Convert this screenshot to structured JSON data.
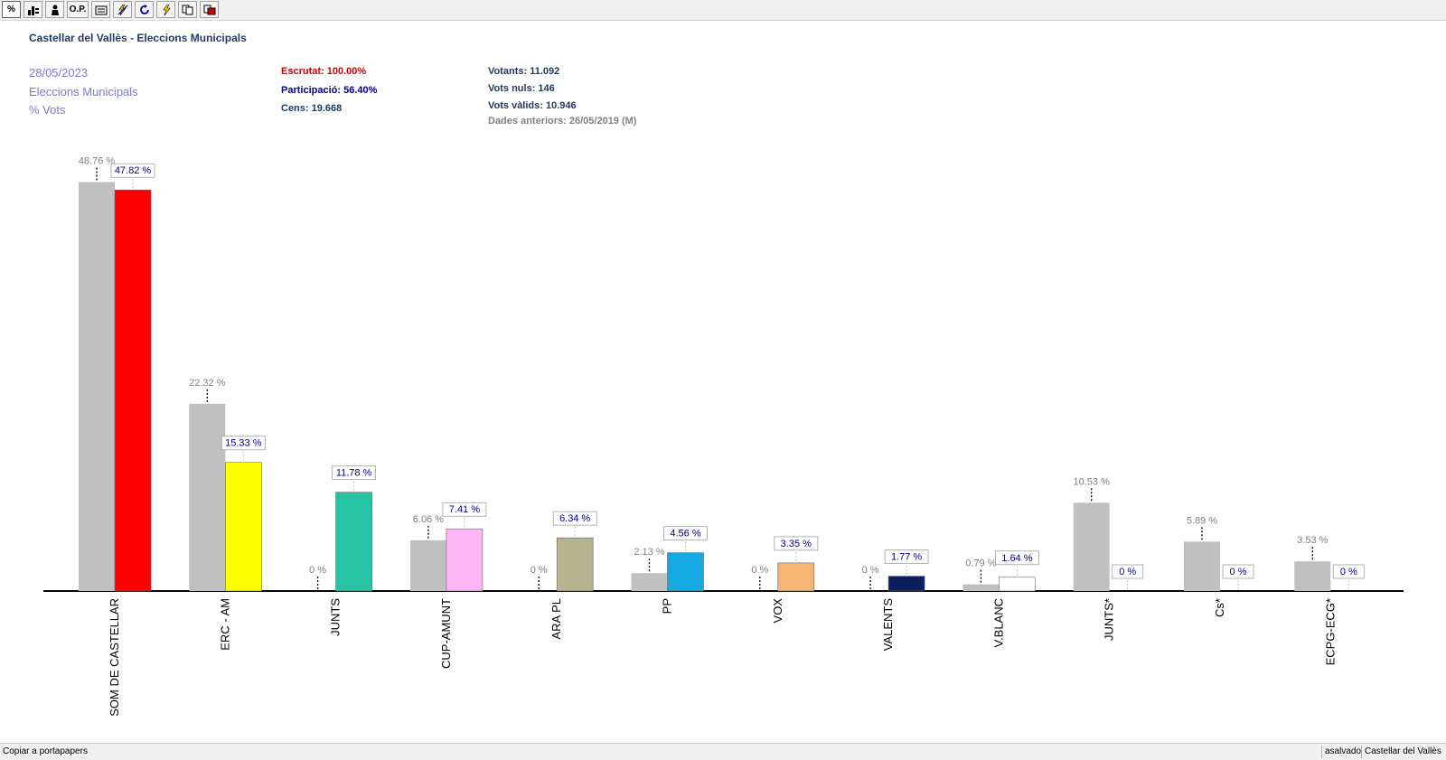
{
  "toolbar": {
    "buttons": [
      {
        "label": "%",
        "icon": "percent-icon"
      },
      {
        "label": "",
        "icon": "seats-chart-icon"
      },
      {
        "label": "",
        "icon": "person-icon"
      },
      {
        "label": "O.P.",
        "icon": "op-icon"
      },
      {
        "label": "",
        "icon": "folder-icon"
      },
      {
        "label": "",
        "icon": "compare-icon"
      },
      {
        "label": "",
        "icon": "refresh-icon"
      },
      {
        "label": "",
        "icon": "lightning-icon"
      },
      {
        "label": "",
        "icon": "copy-icon"
      },
      {
        "label": "",
        "icon": "export-icon"
      }
    ]
  },
  "header": {
    "title": "Castellar del Vallès - Eleccions Municipals",
    "date": "28/05/2023",
    "election": "Eleccions Municipals",
    "metric": "% Vots"
  },
  "stats": {
    "escrutat": "Escrutat: 100.00%",
    "participacio": "Participació: 56.40%",
    "cens": "Cens: 19.668",
    "votants": "Votants: 11.092",
    "vots_nuls": "Vots nuls: 146",
    "vots_valids": "Vots vàlids: 10.946",
    "dades_anteriors": "Dades anteriors: 26/05/2019 (M)"
  },
  "colors": {
    "previous": "#c0c0c0",
    "escrutat": "#cc0000",
    "participacio": "#00008b",
    "info": "#1f3a5f",
    "previous_label": "#808080",
    "current_label": "#00008b"
  },
  "chart_data": {
    "type": "bar",
    "ylim": [
      0,
      50
    ],
    "categories": [
      "SOM DE CASTELLAR",
      "ERC - AM",
      "JUNTS",
      "CUP-AMUNT",
      "ARA PL",
      "PP",
      "VOX",
      "VALENTS",
      "V.BLANC",
      "JUNTS*",
      "Cs*",
      "ECPG-ECG*"
    ],
    "series": [
      {
        "values": [
          48.76,
          22.32,
          0,
          6.06,
          0,
          2.13,
          0,
          0,
          0.79,
          10.53,
          5.89,
          3.53
        ],
        "labels": [
          "48.76 %",
          "22.32 %",
          "0 %",
          "6.06 %",
          "0 %",
          "2.13 %",
          "0 %",
          "0 %",
          "0.79 %",
          "10.53 %",
          "5.89 %",
          "3.53 %"
        ]
      },
      {
        "values": [
          47.82,
          15.33,
          11.78,
          7.41,
          6.34,
          4.56,
          3.35,
          1.77,
          1.64,
          0,
          0,
          0
        ],
        "labels": [
          "47.82 %",
          "15.33 %",
          "11.78 %",
          "7.41 %",
          "6.34 %",
          "4.56 %",
          "3.35 %",
          "1.77 %",
          "1.64 %",
          "0 %",
          "0 %",
          "0 %"
        ],
        "colors": [
          "#ff0000",
          "#ffff00",
          "#26c4a4",
          "#ffb6f7",
          "#b6b38f",
          "#14a9e3",
          "#f7b574",
          "#0b1f5c",
          "#ffffff",
          "#ffffff",
          "#ffffff",
          "#ffffff"
        ]
      }
    ]
  },
  "statusbar": {
    "message": "Copiar a portapapers",
    "user": "asalvado",
    "location": "Castellar del Vallès"
  }
}
